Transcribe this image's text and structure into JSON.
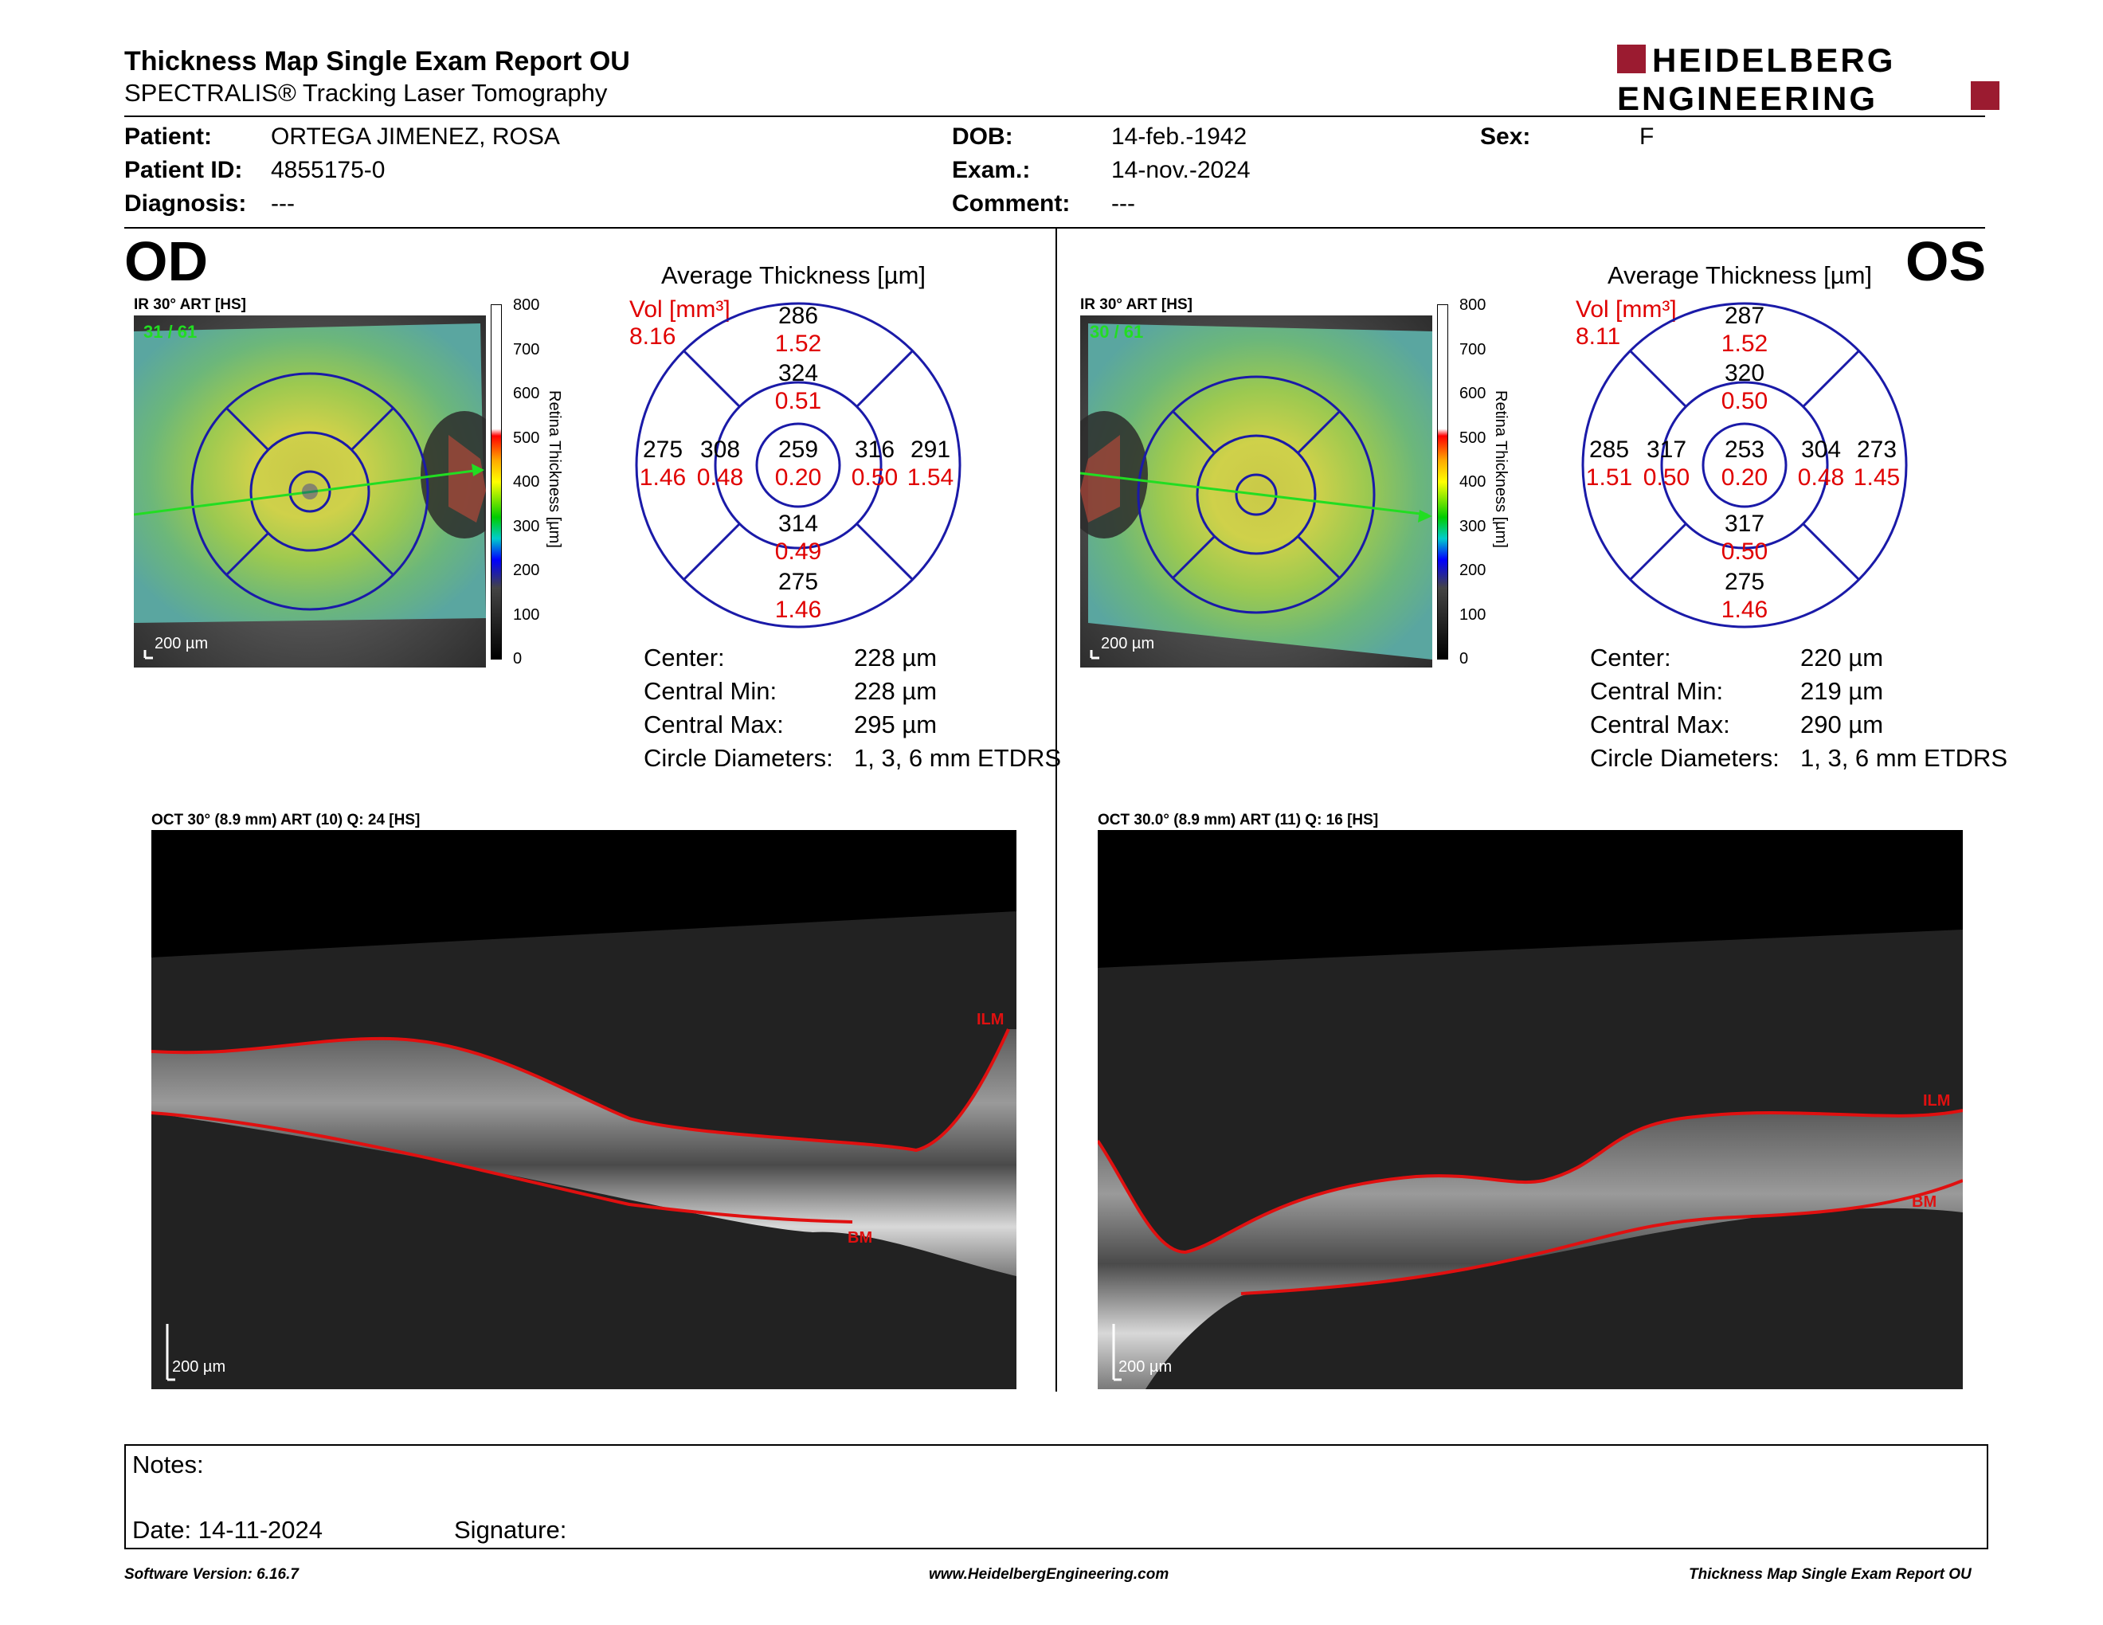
{
  "header": {
    "title": "Thickness Map Single Exam Report OU",
    "subtitle": "SPECTRALIS® Tracking Laser Tomography",
    "logo_line1": "HEIDELBERG",
    "logo_line2": "ENGINEERING"
  },
  "patient": {
    "patient_label": "Patient:",
    "patient": "ORTEGA JIMENEZ, ROSA",
    "id_label": "Patient ID:",
    "id": "4855175-0",
    "diag_label": "Diagnosis:",
    "diag": "---",
    "dob_label": "DOB:",
    "dob": "14-feb.-1942",
    "exam_label": "Exam.:",
    "exam": "14-nov.-2024",
    "comment_label": "Comment:",
    "comment": "---",
    "sex_label": "Sex:",
    "sex": "F"
  },
  "colorbar": {
    "ticks": [
      "800",
      "700",
      "600",
      "500",
      "400",
      "300",
      "200",
      "100",
      "0"
    ],
    "caption": "Retina Thickness [µm]"
  },
  "od": {
    "eye": "OD",
    "fundus_label": "IR 30° ART [HS]",
    "frame": "31 / 61",
    "scalebar": "200 µm",
    "etdrs_title": "Average Thickness [µm]",
    "vol_label": "Vol [mm³]",
    "vol_total": "8.16",
    "sectors": {
      "center": [
        "259",
        "0.20"
      ],
      "inner_sup": [
        "324",
        "0.51"
      ],
      "inner_inf": [
        "314",
        "0.49"
      ],
      "inner_nasal_left": [
        "308",
        "0.48"
      ],
      "inner_right": [
        "316",
        "0.50"
      ],
      "outer_sup": [
        "286",
        "1.52"
      ],
      "outer_inf": [
        "275",
        "1.46"
      ],
      "outer_left": [
        "275",
        "1.46"
      ],
      "outer_right": [
        "291",
        "1.54"
      ]
    },
    "stats": [
      {
        "label": "Center:",
        "value": "228 µm"
      },
      {
        "label": "Central Min:",
        "value": "228 µm"
      },
      {
        "label": "Central Max:",
        "value": "295 µm"
      },
      {
        "label": "Circle Diameters:",
        "value": "1, 3, 6 mm ETDRS"
      }
    ],
    "oct_label": "OCT 30° (8.9 mm) ART (10) Q: 24 [HS]",
    "oct_scalebar": "200 µm",
    "ilm": "ILM",
    "bm": "BM"
  },
  "os": {
    "eye": "OS",
    "fundus_label": "IR 30° ART [HS]",
    "frame": "30 / 61",
    "scalebar": "200 µm",
    "etdrs_title": "Average Thickness [µm]",
    "vol_label": "Vol [mm³]",
    "vol_total": "8.11",
    "sectors": {
      "center": [
        "253",
        "0.20"
      ],
      "inner_sup": [
        "320",
        "0.50"
      ],
      "inner_inf": [
        "317",
        "0.50"
      ],
      "inner_nasal_left": [
        "317",
        "0.50"
      ],
      "inner_right": [
        "304",
        "0.48"
      ],
      "outer_sup": [
        "287",
        "1.52"
      ],
      "outer_inf": [
        "275",
        "1.46"
      ],
      "outer_left": [
        "285",
        "1.51"
      ],
      "outer_right": [
        "273",
        "1.45"
      ]
    },
    "stats": [
      {
        "label": "Center:",
        "value": "220 µm"
      },
      {
        "label": "Central Min:",
        "value": "219 µm"
      },
      {
        "label": "Central Max:",
        "value": "290 µm"
      },
      {
        "label": "Circle Diameters:",
        "value": "1, 3, 6 mm ETDRS"
      }
    ],
    "oct_label": "OCT 30.0° (8.9 mm) ART (11) Q: 16 [HS]",
    "oct_scalebar": "200 µm",
    "ilm": "ILM",
    "bm": "BM"
  },
  "notes": {
    "notes_label": "Notes:",
    "date_label": "Date: 14-11-2024",
    "signature_label": "Signature:"
  },
  "footer": {
    "software": "Software Version: 6.16.7",
    "website": "www.HeidelbergEngineering.com",
    "report": "Thickness Map Single Exam Report OU"
  },
  "colors": {
    "etdrs_ring": "#1a1aa8",
    "volume_red": "#e00000",
    "layer_red": "#e01010",
    "logo_red": "#9b1b30"
  }
}
